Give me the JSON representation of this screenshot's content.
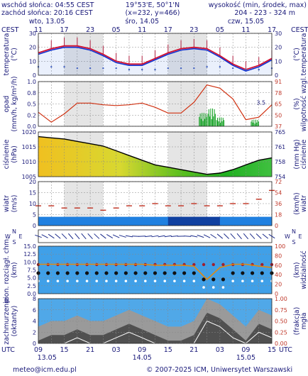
{
  "header": {
    "sunrise": "wschód słońca: 04:55 CEST",
    "sunset": "zachód słońca: 20:16 CEST",
    "coords": "19°53'E, 50°1'N",
    "grid": "(x=232, y=466)",
    "altitude_title": "wysokość (min, środek, max)",
    "altitude_values": "204 - 223 - 324 m"
  },
  "top_axis": {
    "tz_left": "CEST",
    "tz_right": "CEST",
    "days": [
      "wto, 13.05",
      "śro, 14.05",
      "czw, 15.05"
    ],
    "hours": [
      "11",
      "17",
      "23",
      "05",
      "11",
      "17",
      "23",
      "05",
      "11",
      "17"
    ]
  },
  "bottom_axis": {
    "tz_left": "UTC",
    "tz_right": "UTC",
    "hours": [
      "09",
      "15",
      "21",
      "03",
      "09",
      "15",
      "21",
      "03",
      "09",
      "15"
    ],
    "dates": [
      "13.05",
      "14.05",
      "15.05"
    ]
  },
  "footer": {
    "email": "meteo@icm.edu.pl",
    "copyright": "© 2007-2025 ICM, Uniwersytet Warszawski"
  },
  "panel_labels": {
    "temp_left": "temperatura",
    "temp_left_unit": "(°C)",
    "temp_right": "temperatura",
    "temp_right_unit": "(°C)",
    "precip_left": "opad",
    "precip_left_unit": "(mm/h, kg/m²/h)",
    "precip_right_unit": "(%)",
    "precip_right": "wilgotność wzgl.",
    "press_left": "ciśnienie",
    "press_left_unit": "(hPa)",
    "press_right_unit": "(mm Hg)",
    "press_right": "ciśnienie",
    "wind_left": "wiatr",
    "wind_left_unit": "(m/s)",
    "wind_right_unit": "(km/h)",
    "wind_right": "wiatr",
    "vis_left": "pion. rozciągł. chm.",
    "vis_left_unit": "(km)",
    "vis_right_unit": "(km)",
    "vis_right": "widzialność",
    "cloud_left": "zachmurzenie",
    "cloud_left_unit": "(oktanty)",
    "cloud_right_unit": "(frakcja)",
    "cloud_right": "mgła",
    "compass_w": "W",
    "compass_s": "S",
    "compass_n": "N",
    "compass_e": "E",
    "rain_note": "3.5"
  },
  "chart_data": [
    {
      "type": "line",
      "panel": "temperature",
      "x_hours": [
        0,
        3,
        6,
        9,
        12,
        15,
        18,
        21,
        24,
        27,
        30,
        33,
        36,
        39,
        42,
        45,
        48,
        51,
        54
      ],
      "yticks_left": [
        "0",
        "10",
        "20",
        "30"
      ],
      "yticks_right": [
        "0",
        "10",
        "20",
        "30"
      ],
      "ylim": [
        0,
        30
      ],
      "series": [
        {
          "role": "max",
          "color": "#d01030",
          "values": [
            16,
            19,
            21,
            21,
            19,
            15,
            10,
            8,
            8,
            12,
            16,
            19,
            20,
            19,
            14,
            8,
            4,
            7,
            12
          ]
        },
        {
          "role": "mean",
          "color": "#1030d0",
          "values": [
            15,
            18,
            20,
            20,
            18,
            14,
            9,
            7,
            7,
            11,
            15,
            18,
            19,
            18,
            13,
            7,
            3,
            6,
            11
          ]
        },
        {
          "role": "dew",
          "color": "#4060c0",
          "values": [
            6,
            6,
            6,
            5,
            5,
            5,
            5,
            4,
            4,
            4,
            5,
            5,
            5,
            6,
            6,
            5,
            4,
            4,
            5
          ]
        }
      ]
    },
    {
      "type": "bar",
      "panel": "precipitation",
      "yticks_left": [
        "0.0",
        "0.2",
        "0.5",
        "0.8",
        "1.0"
      ],
      "yticks_right": [
        "37",
        "50",
        "65",
        "78",
        "91"
      ],
      "ylim_left": [
        0,
        1.0
      ],
      "ylim_right": [
        37,
        91
      ],
      "humidity_pct": [
        54,
        42,
        52,
        65,
        65,
        63,
        62,
        63,
        65,
        60,
        53,
        53,
        66,
        87,
        83,
        70,
        45,
        48,
        63
      ],
      "precip_bursts": [
        {
          "hour": 38,
          "mm": 0.3
        },
        {
          "hour": 40,
          "mm": 0.4
        },
        {
          "hour": 42,
          "mm": 0.2
        },
        {
          "hour": 50,
          "mm": 0.15
        }
      ]
    },
    {
      "type": "area",
      "panel": "pressure",
      "yticks_left": [
        "1005",
        "1010",
        "1015",
        "1020"
      ],
      "yticks_right": [
        "754",
        "758",
        "761",
        "765"
      ],
      "ylim": [
        1003,
        1022
      ],
      "values_hpa": [
        1020,
        1019.5,
        1019,
        1018,
        1017,
        1016,
        1014,
        1012,
        1010,
        1008,
        1007,
        1006,
        1005,
        1004,
        1004.5,
        1006,
        1008,
        1010,
        1011
      ]
    },
    {
      "type": "line",
      "panel": "wind",
      "yticks_left": [
        "0",
        "5",
        "10",
        "15",
        "20"
      ],
      "yticks_right": [
        "0",
        "18",
        "36",
        "54",
        "72"
      ],
      "ylim": [
        0,
        20
      ],
      "gust_values": [
        9,
        9,
        8,
        8,
        8,
        7,
        8,
        9,
        9,
        10,
        9,
        9,
        10,
        9,
        9,
        10,
        10,
        12,
        16
      ],
      "mean_values": [
        4,
        4,
        4,
        4,
        4,
        4,
        4,
        4,
        4,
        4,
        4,
        4,
        4,
        4,
        4,
        4,
        4,
        4,
        5
      ]
    },
    {
      "type": "line",
      "panel": "visibility",
      "yticks_left": [
        "0.0",
        "2.5",
        "5.0",
        "7.5",
        "10.0",
        "12.5",
        "15.0"
      ],
      "yticks_right": [
        "0",
        "20",
        "40",
        "60",
        "80",
        "100"
      ],
      "cloud_top_km": [
        9,
        9,
        9,
        9,
        9,
        9,
        9,
        9,
        9,
        9,
        9,
        9,
        9,
        9,
        9,
        9,
        9,
        9,
        8
      ],
      "visibility_km": [
        62,
        62,
        62,
        62,
        62,
        62,
        62,
        62,
        62,
        60,
        60,
        60,
        58,
        30,
        55,
        62,
        62,
        58,
        55
      ]
    },
    {
      "type": "area",
      "panel": "cloudiness",
      "yticks_left": [
        "0",
        "2",
        "4",
        "6",
        "8"
      ],
      "yticks_right": [
        "0.00",
        "0.25",
        "0.50",
        "0.75",
        "1.00"
      ],
      "ylim": [
        0,
        8
      ],
      "total_cloud": [
        3,
        4,
        4,
        5,
        4,
        4,
        5,
        6,
        5,
        4,
        3,
        3,
        4,
        8,
        7,
        5,
        3,
        6,
        5
      ]
    }
  ]
}
